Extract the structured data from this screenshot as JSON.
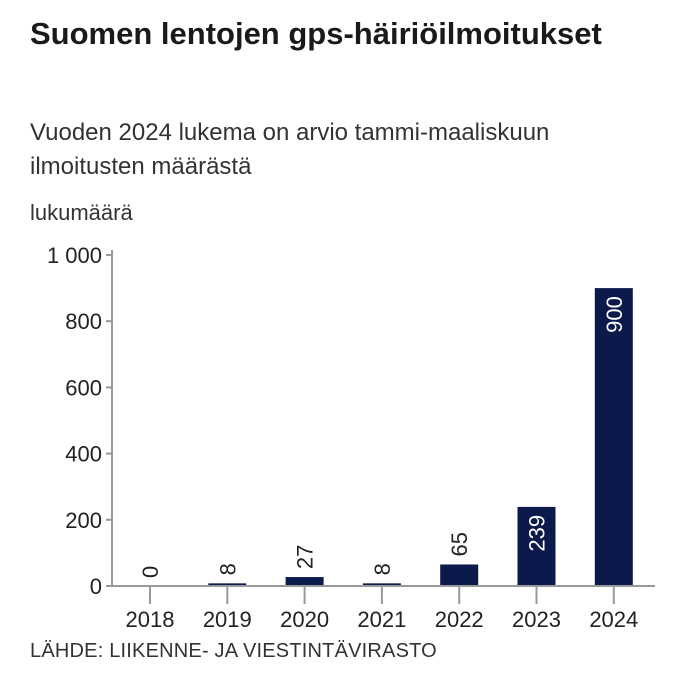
{
  "chart_data": {
    "type": "bar",
    "title": "Suomen lentojen gps-häiriöilmoitukset",
    "subtitle_lines": [
      "Vuoden 2024 lukema on arvio tammi-maaliskuun",
      "ilmoitusten määrästä"
    ],
    "ylabel": "lukumäärä",
    "xlabel": "",
    "categories": [
      "2018",
      "2019",
      "2020",
      "2021",
      "2022",
      "2023",
      "2024"
    ],
    "values": [
      0,
      8,
      27,
      8,
      65,
      239,
      900
    ],
    "data_labels": [
      "0",
      "8",
      "27",
      "8",
      "65",
      "239",
      "900"
    ],
    "yticks": [
      0,
      200,
      400,
      600,
      800,
      1000
    ],
    "ytick_labels": [
      "0",
      "200",
      "400",
      "600",
      "800",
      "1 000"
    ],
    "ylim": [
      0,
      1000
    ],
    "grid": false,
    "bar_color": "#0c1a4b",
    "source": "LÄHDE: LIIKENNE- JA VIESTINTÄVIRASTO"
  }
}
